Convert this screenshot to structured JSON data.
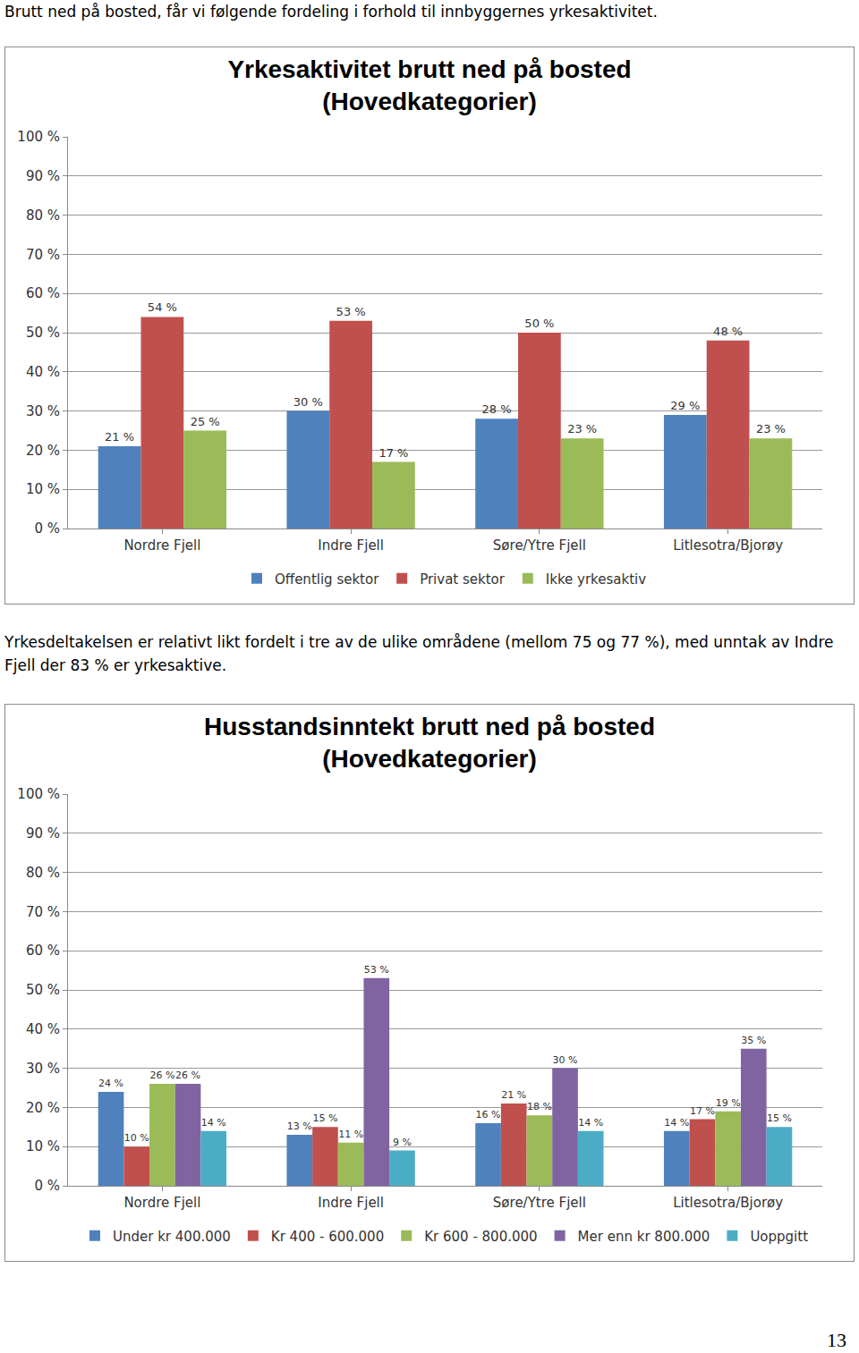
{
  "intro": "Brutt ned på bosted, får vi følgende fordeling i forhold til innbyggernes yrkesaktivitet.",
  "paragraph": "Yrkesdeltakelsen er relativt likt fordelt i tre av de ulike områdene (mellom 75 og 77 %), med unntak av Indre Fjell der 83 % er yrkesaktive.",
  "page_number": 13,
  "chart_data": [
    {
      "type": "bar",
      "title": "Yrkesaktivitet brutt ned på bosted\n(Hovedkategorier)",
      "categories": [
        "Nordre Fjell",
        "Indre Fjell",
        "Søre/Ytre Fjell",
        "Litlesotra/Bjorøy"
      ],
      "series": [
        {
          "name": "Offentlig sektor",
          "color": "#4f81bd",
          "values": [
            21,
            30,
            28,
            29
          ],
          "value_labels": [
            "21 %",
            "30 %",
            "28 %",
            "29 %"
          ]
        },
        {
          "name": "Privat sektor",
          "color": "#c0504d",
          "values": [
            54,
            53,
            50,
            48
          ],
          "value_labels": [
            "54 %",
            "53 %",
            "50 %",
            "48 %"
          ]
        },
        {
          "name": "Ikke yrkesaktiv",
          "color": "#9bbb59",
          "values": [
            25,
            17,
            23,
            23
          ],
          "value_labels": [
            "25 %",
            "17 %",
            "23 %",
            "23 %"
          ]
        }
      ],
      "ylim": [
        0,
        100
      ],
      "yticks": [
        {
          "value": 0,
          "label": "0 %"
        },
        {
          "value": 10,
          "label": "10 %"
        },
        {
          "value": 20,
          "label": "20 %"
        },
        {
          "value": 30,
          "label": "30 %"
        },
        {
          "value": 40,
          "label": "40 %"
        },
        {
          "value": 50,
          "label": "50 %"
        },
        {
          "value": 60,
          "label": "60 %"
        },
        {
          "value": 70,
          "label": "70 %"
        },
        {
          "value": 80,
          "label": "80 %"
        },
        {
          "value": 90,
          "label": "90 %"
        },
        {
          "value": 100,
          "label": "100 %"
        }
      ],
      "grid": true,
      "legend": "bottom",
      "data_labels": true
    },
    {
      "type": "bar",
      "title": "Husstandsinntekt brutt ned på bosted\n(Hovedkategorier)",
      "categories": [
        "Nordre Fjell",
        "Indre Fjell",
        "Søre/Ytre Fjell",
        "Litlesotra/Bjorøy"
      ],
      "series": [
        {
          "name": "Under kr 400.000",
          "color": "#4f81bd",
          "values": [
            24,
            13,
            16,
            14
          ],
          "value_labels": [
            "24 %",
            "13 %",
            "16 %",
            "14 %"
          ]
        },
        {
          "name": "Kr 400 - 600.000",
          "color": "#c0504d",
          "values": [
            10,
            15,
            21,
            17
          ],
          "value_labels": [
            "10 %",
            "15 %",
            "21 %",
            "17 %"
          ]
        },
        {
          "name": "Kr 600 - 800.000",
          "color": "#9bbb59",
          "values": [
            26,
            11,
            18,
            19
          ],
          "value_labels": [
            "26 %",
            "11 %",
            "18 %",
            "19 %"
          ]
        },
        {
          "name": "Mer enn kr 800.000",
          "color": "#8064a2",
          "values": [
            26,
            53,
            30,
            35
          ],
          "value_labels": [
            "26 %",
            "53 %",
            "30 %",
            "35 %"
          ]
        },
        {
          "name": "Uoppgitt",
          "color": "#4bacc6",
          "values": [
            14,
            9,
            14,
            15
          ],
          "value_labels": [
            "14 %",
            "9 %",
            "14 %",
            "15 %"
          ]
        }
      ],
      "ylim": [
        0,
        100
      ],
      "yticks": [
        {
          "value": 0,
          "label": "0 %"
        },
        {
          "value": 10,
          "label": "10 %"
        },
        {
          "value": 20,
          "label": "20 %"
        },
        {
          "value": 30,
          "label": "30 %"
        },
        {
          "value": 40,
          "label": "40 %"
        },
        {
          "value": 50,
          "label": "50 %"
        },
        {
          "value": 60,
          "label": "60 %"
        },
        {
          "value": 70,
          "label": "70 %"
        },
        {
          "value": 80,
          "label": "80 %"
        },
        {
          "value": 90,
          "label": "90 %"
        },
        {
          "value": 100,
          "label": "100 %"
        }
      ],
      "grid": true,
      "legend": "bottom",
      "data_labels": true
    }
  ]
}
